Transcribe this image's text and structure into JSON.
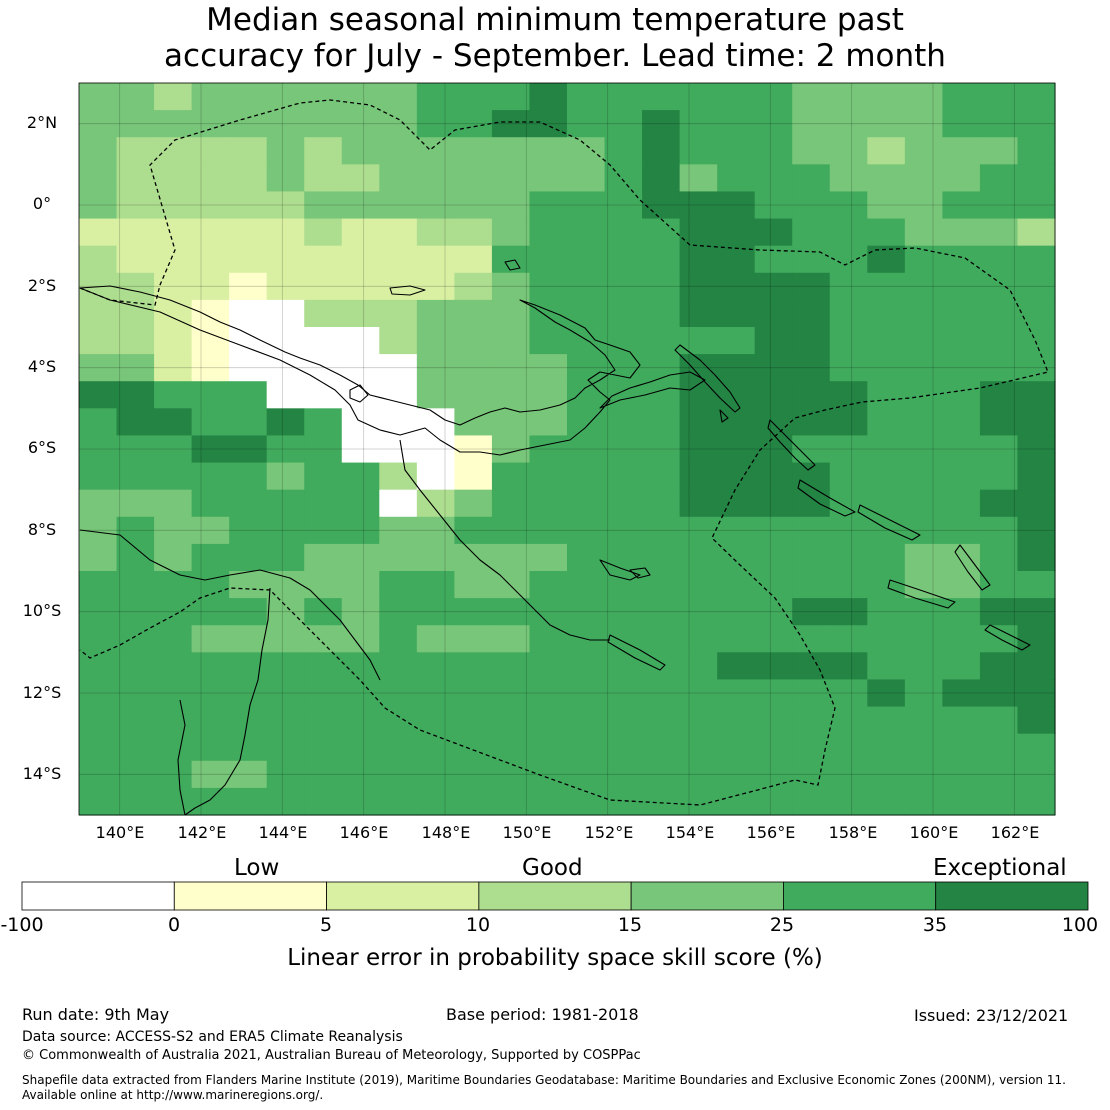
{
  "title_line1": "Median seasonal minimum temperature past",
  "title_line2": "accuracy for July - September. Lead time: 2 month",
  "lat_labels": [
    "2°N",
    "0°",
    "2°S",
    "4°S",
    "6°S",
    "8°S",
    "10°S",
    "12°S",
    "14°S"
  ],
  "lon_labels": [
    "140°E",
    "142°E",
    "144°E",
    "146°E",
    "148°E",
    "150°E",
    "152°E",
    "154°E",
    "156°E",
    "158°E",
    "160°E",
    "162°E"
  ],
  "colorbar": {
    "categories": [
      "Low",
      "Good",
      "Exceptional"
    ],
    "ticks": [
      "-100",
      "0",
      "5",
      "10",
      "15",
      "25",
      "35",
      "100"
    ],
    "colors": [
      "#ffffff",
      "#ffffcc",
      "#d9f0a3",
      "#addd8e",
      "#78c679",
      "#41ab5d",
      "#238443"
    ],
    "label": "Linear error in probability space skill score (%)"
  },
  "footer": {
    "run_date": "Run date: 9th May",
    "base_period": "Base period: 1981-2018",
    "issued": "Issued: 23/12/2021",
    "data_source": "Data source: ACCESS-S2 and ERA5 Climate Reanalysis",
    "copyright": "© Commonwealth of Australia 2021, Australian Bureau of Meteorology, Supported by COSPPac",
    "shapefile_1": "Shapefile data extracted from Flanders Marine Institute (2019), Maritime Boundaries Geodatabase: Maritime Boundaries and Exclusive Economic Zones (200NM), version 11.",
    "shapefile_2": "Available online at http://www.marineregions.org/."
  },
  "map_grid": {
    "lon_range": [
      139,
      163
    ],
    "lat_range": [
      -15,
      3
    ],
    "category_rows_north_to_south": [
      "44344444455565555554444555",
      "44444444455665565554444555",
      "43333434444444565554434445",
      "43333433444444564555444455",
      "43333344444455566655544555",
      "22222232233455556665554443",
      "32222222222555556655565555",
      "33221222223455556666555555",
      "33210033344455556666555555",
      "33210000344455555566555555",
      "44210000044445556666555555",
      "66555000044445556666655566",
      "56655650004445556666655566",
      "55566550001455556665555556",
      "55555455301555556666555556",
      "44455555034555556666555566",
      "45445555445555555555555556",
      "45455544444445555555554456",
      "55554444554455555555554455",
      "55555454555555555556655566",
      "55544444544455555555555556",
      "55555555555555555666655566",
      "55555555555555555555565666",
      "55555555555555555555555556",
      "55555555555555555555555555",
      "55544555555555555555555555",
      "55555555555555555555555555"
    ]
  }
}
